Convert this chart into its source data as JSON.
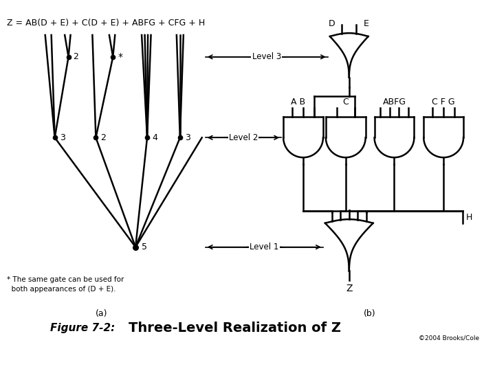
{
  "title_italic": "Figure 7-2:",
  "title_bold": "Three-Level Realization of Z",
  "copyright": "©2004 Brooks/Cole",
  "equation": "Z = AB(D + E) + C(D + E) + ABFG + CFG + H",
  "fn_line1": "* The same gate can be used for",
  "fn_line2": "  both appearances of (D + E).",
  "label_a": "(a)",
  "label_b": "(b)",
  "bg_color": "#ffffff",
  "lc": "#000000"
}
